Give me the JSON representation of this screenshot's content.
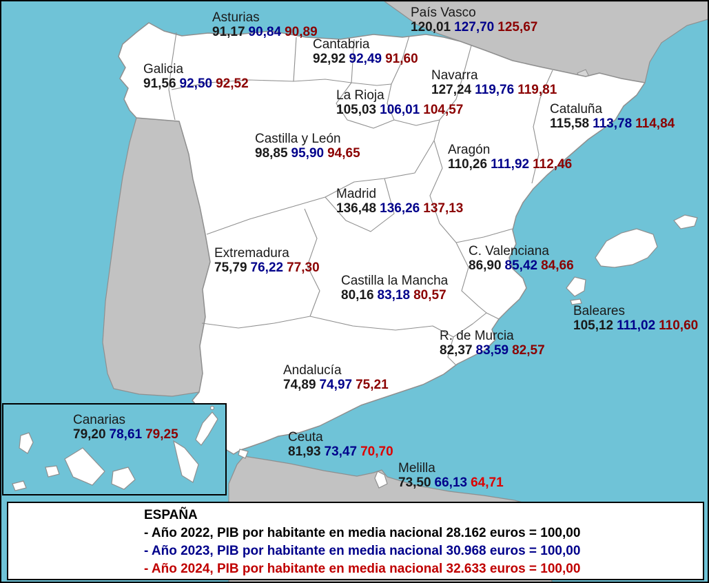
{
  "colors": {
    "sea": "#6fc3d7",
    "foreign_land": "#c2c2c2",
    "region_fill": "#ffffff",
    "region_border": "#8f8f8f",
    "value_2022": "#1a1a1a",
    "value_2023": "#00008b",
    "value_2024": "#8b0000",
    "value_2024_bright": "#dd0000",
    "legend_2022": "#000000",
    "legend_2023": "#00008b",
    "legend_2024": "#c00000"
  },
  "regions": [
    {
      "id": "pais_vasco",
      "name": "País Vasco",
      "v2022": "120,01",
      "v2023": "127,70",
      "v2024": "125,67",
      "bright_red": false
    },
    {
      "id": "asturias",
      "name": "Asturias",
      "v2022": "91,17",
      "v2023": "90,84",
      "v2024": "90,89",
      "bright_red": false
    },
    {
      "id": "cantabria",
      "name": "Cantabria",
      "v2022": "92,92",
      "v2023": "92,49",
      "v2024": "91,60",
      "bright_red": false
    },
    {
      "id": "galicia",
      "name": "Galicia",
      "v2022": "91,56",
      "v2023": "92,50",
      "v2024": "92,52",
      "bright_red": false
    },
    {
      "id": "navarra",
      "name": "Navarra",
      "v2022": "127,24",
      "v2023": "119,76",
      "v2024": "119,81",
      "bright_red": false
    },
    {
      "id": "la_rioja",
      "name": "La Rioja",
      "v2022": "105,03",
      "v2023": "106,01",
      "v2024": "104,57",
      "bright_red": false
    },
    {
      "id": "cataluna",
      "name": "Cataluña",
      "v2022": "115,58",
      "v2023": "113,78",
      "v2024": "114,84",
      "bright_red": false
    },
    {
      "id": "castilla_y_leon",
      "name": "Castilla y León",
      "v2022": "98,85",
      "v2023": "95,90",
      "v2024": "94,65",
      "bright_red": false
    },
    {
      "id": "aragon",
      "name": "Aragón",
      "v2022": "110,26",
      "v2023": "111,92",
      "v2024": "112,46",
      "bright_red": false
    },
    {
      "id": "madrid",
      "name": "Madrid",
      "v2022": "136,48",
      "v2023": "136,26",
      "v2024": "137,13",
      "bright_red": false
    },
    {
      "id": "extremadura",
      "name": "Extremadura",
      "v2022": "75,79",
      "v2023": "76,22",
      "v2024": "77,30",
      "bright_red": false
    },
    {
      "id": "c_valenciana",
      "name": "C. Valenciana",
      "v2022": "86,90",
      "v2023": "85,42",
      "v2024": "84,66",
      "bright_red": false
    },
    {
      "id": "castilla_la_mancha",
      "name": "Castilla la Mancha",
      "v2022": "80,16",
      "v2023": "83,18",
      "v2024": "80,57",
      "bright_red": false
    },
    {
      "id": "baleares",
      "name": "Baleares",
      "v2022": "105,12",
      "v2023": "111,02",
      "v2024": "110,60",
      "bright_red": false
    },
    {
      "id": "r_de_murcia",
      "name": "R. de Murcia",
      "v2022": "82,37",
      "v2023": "83,59",
      "v2024": "82,57",
      "bright_red": false
    },
    {
      "id": "andalucia",
      "name": "Andalucía",
      "v2022": "74,89",
      "v2023": "74,97",
      "v2024": "75,21",
      "bright_red": false
    },
    {
      "id": "canarias",
      "name": "Canarias",
      "v2022": "79,20",
      "v2023": "78,61",
      "v2024": "79,25",
      "bright_red": false
    },
    {
      "id": "ceuta",
      "name": "Ceuta",
      "v2022": "81,93",
      "v2023": "73,47",
      "v2024": "70,70",
      "bright_red": true
    },
    {
      "id": "melilla",
      "name": "Melilla",
      "v2022": "73,50",
      "v2023": "66,13",
      "v2024": "64,71",
      "bright_red": true
    }
  ],
  "legend": {
    "country": "ESPAÑA",
    "lines": [
      {
        "year": "2022",
        "text": "- Año 2022, PIB por habitante en media nacional 28.162 euros = 100,00",
        "color": "#000000"
      },
      {
        "year": "2023",
        "text": "- Año 2023, PIB por habitante en media nacional 30.968 euros = 100,00",
        "color": "#00008b"
      },
      {
        "year": "2024",
        "text": "- Año 2024, PIB por habitante en media nacional 32.633 euros = 100,00",
        "color": "#c00000"
      }
    ]
  }
}
